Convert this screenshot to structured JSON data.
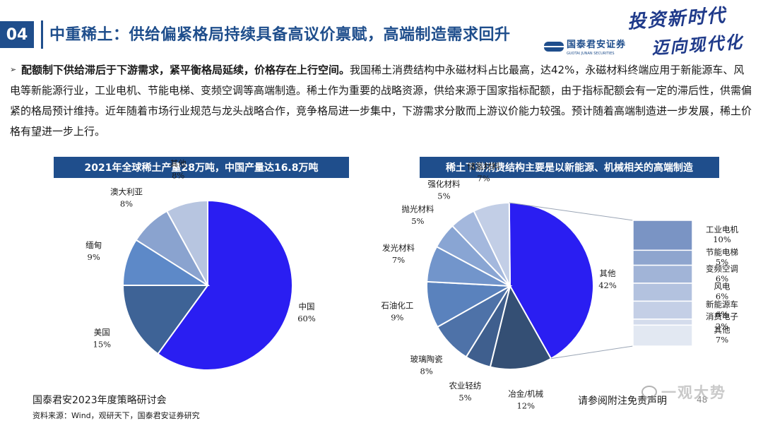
{
  "header": {
    "section_number": "04",
    "title": "中重稀土：供给偏紧格局持续具备高议价禀赋，高端制造需求回升",
    "calligraphy_line1": "投资新时代",
    "calligraphy_line2": "迈向现代化",
    "logo_cn": "国泰君安证券",
    "logo_en": "GUOTAI JUNAN SECURITIES"
  },
  "body": {
    "bullet": "➢",
    "lead_bold": "配额制下供给滞后于下游需求，紧平衡格局延续，价格存在上行空间。",
    "text": "我国稀土消费结构中永磁材料占比最高，达42%，永磁材料终端应用于新能源车、风电等新能源行业，工业电机、节能电梯、变频空调等高端制造。稀土作为重要的战略资源，供给来源于国家指标配额，由于指标配额会有一定的滞后性，供需偏紧的格局预计维持。近年随着市场行业规范与龙头战略合作，竞争格局进一步集中，下游需求分散而上游议价能力较强。预计随着高端制造进一步发展，稀土价格有望进一步上行。"
  },
  "chart_data": [
    {
      "type": "pie",
      "title": "2021年全球稀土产量28万吨，中国产量达16.8万吨",
      "categories": [
        "中国",
        "美国",
        "缅甸",
        "澳大利亚",
        "其他"
      ],
      "values": [
        60,
        15,
        9,
        8,
        8
      ],
      "value_labels": [
        "60%",
        "15%",
        "9%",
        "8%",
        "8%"
      ],
      "colors": [
        "#2a1ef2",
        "#3e6396",
        "#5d89c8",
        "#8aa3cf",
        "#b7c5e0"
      ]
    },
    {
      "type": "pie",
      "title": "稀土下游消费结构主要是以新能源、机械相关的高端制造",
      "categories": [
        "其他",
        "冶金/机械",
        "农业轻纺",
        "玻璃陶瓷",
        "石油化工",
        "发光材料",
        "抛光材料",
        "强化材料",
        "储氢材料"
      ],
      "values": [
        42,
        12,
        5,
        8,
        9,
        7,
        5,
        5,
        7
      ],
      "value_labels": [
        "42%",
        "12%",
        "5%",
        "8%",
        "9%",
        "7%",
        "5%",
        "5%",
        "7%"
      ],
      "colors": [
        "#2a1ef2",
        "#344f74",
        "#3f5f8e",
        "#4e72a8",
        "#5a82bd",
        "#7295cb",
        "#89a5d3",
        "#a4b8dd",
        "#c2cee6"
      ],
      "breakdown": {
        "of": "其他",
        "categories": [
          "工业电机",
          "节能电梯",
          "变频空调",
          "风电",
          "新能源车",
          "消费电子",
          "其他"
        ],
        "values": [
          10,
          5,
          6,
          6,
          6,
          2,
          7
        ],
        "value_labels": [
          "10%",
          "5%",
          "6%",
          "6%",
          "6%",
          "2%",
          "7%"
        ],
        "colors": [
          "#7a94c4",
          "#8ea5ce",
          "#a1b4d7",
          "#b3c2df",
          "#c4cfe6",
          "#d4dcec",
          "#e2e8f2"
        ]
      }
    }
  ],
  "footer": {
    "event": "国泰君安2023年度策略研讨会",
    "source": "资料来源：Wind，观研天下，国泰君安证券研究",
    "disclaimer": "请参阅附注免责声明",
    "page": "48",
    "watermark": "一观大势"
  }
}
